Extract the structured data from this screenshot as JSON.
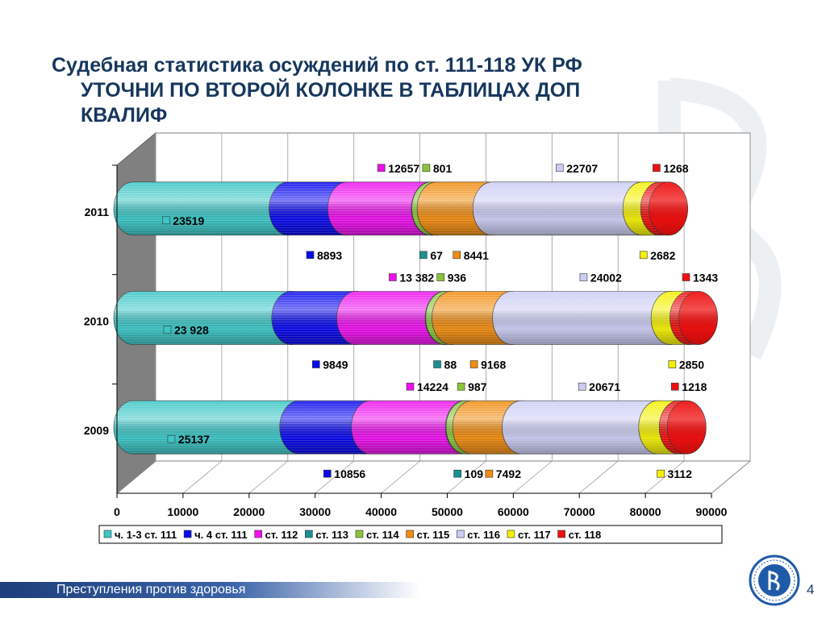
{
  "title": {
    "line1": "Судебная статистика осуждений по ст. 111-118 УК РФ",
    "line2": "УТОЧНИ ПО ВТОРОЙ КОЛОНКЕ В ТАБЛИЦАХ ДОП",
    "line3": "КВАЛИФ"
  },
  "footer": {
    "text": "Преступления против здоровья",
    "page": "4"
  },
  "logo": {
    "icon": "hse-logo-icon",
    "color": "#1f5aa8"
  },
  "chart_data": {
    "type": "bar",
    "orientation": "horizontal",
    "stacked": true,
    "style": "3d-cylinder",
    "categories": [
      "2011",
      "2010",
      "2009"
    ],
    "xlim": [
      0,
      90000
    ],
    "xticks": [
      "0",
      "10000",
      "20000",
      "30000",
      "40000",
      "50000",
      "60000",
      "70000",
      "80000",
      "90000"
    ],
    "grid": true,
    "legend_position": "bottom",
    "series": [
      {
        "name": "ч. 1-3 ст. 111",
        "color": "#3cc6c6",
        "values": [
          23519,
          23928,
          25137
        ],
        "labels": [
          "23519",
          "23 928",
          "25137"
        ]
      },
      {
        "name": "ч. 4 ст. 111",
        "color": "#0a0aee",
        "values": [
          8893,
          9849,
          10856
        ],
        "labels": [
          "8893",
          "9849",
          "10856"
        ]
      },
      {
        "name": "ст. 112",
        "color": "#ee10ee",
        "values": [
          12657,
          13382,
          14224
        ],
        "labels": [
          "12657",
          "13 382",
          "14224"
        ]
      },
      {
        "name": "ст. 113",
        "color": "#1a9090",
        "values": [
          67,
          88,
          109
        ],
        "labels": [
          "67",
          "88",
          "109"
        ]
      },
      {
        "name": "ст. 114",
        "color": "#8ac43a",
        "values": [
          801,
          936,
          987
        ],
        "labels": [
          "801",
          "936",
          "987"
        ]
      },
      {
        "name": "ст. 115",
        "color": "#f08c10",
        "values": [
          8441,
          9168,
          7492
        ],
        "labels": [
          "8441",
          "9168",
          "7492"
        ]
      },
      {
        "name": "ст. 116",
        "color": "#cccdf4",
        "values": [
          22707,
          24002,
          20671
        ],
        "labels": [
          "22707",
          "24002",
          "20671"
        ]
      },
      {
        "name": "ст. 117",
        "color": "#f4f000",
        "values": [
          2682,
          2850,
          3112
        ],
        "labels": [
          "2682",
          "2850",
          "3112"
        ]
      },
      {
        "name": "ст. 118",
        "color": "#ee1010",
        "values": [
          1268,
          1343,
          1218
        ],
        "labels": [
          "1268",
          "1343",
          "1218"
        ]
      }
    ]
  }
}
